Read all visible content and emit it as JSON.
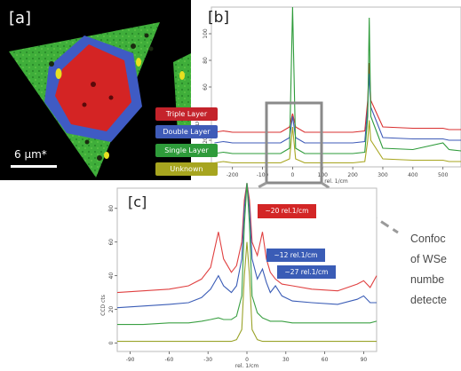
{
  "panel_a": {
    "label": "[a]",
    "scalebar_label": "6 µm*"
  },
  "panel_b": {
    "label": "[b]",
    "ylabel": "CCD cts",
    "xlabel": "rel. 1/cm",
    "x_ticks": [
      "-200",
      "-100",
      "0",
      "100",
      "200",
      "300",
      "400",
      "500"
    ],
    "y_ticks": [
      "100",
      "80",
      "60",
      "40",
      "20"
    ],
    "legend": [
      {
        "label": "Triple Layer",
        "color": "#c4232b"
      },
      {
        "label": "Double Layer",
        "color": "#3f5bb8"
      },
      {
        "label": "Single Layer",
        "color": "#2e9b3a"
      },
      {
        "label": "Unknown",
        "color": "#a7a51f"
      }
    ]
  },
  "panel_c": {
    "label": "[c]",
    "ylabel": "CCD cts",
    "xlabel": "rel. 1/cm",
    "x_ticks": [
      "-90",
      "-60",
      "-30",
      "0",
      "30",
      "60",
      "90"
    ],
    "y_ticks": [
      "80",
      "60",
      "40",
      "20",
      "0"
    ],
    "annotations": [
      {
        "text": "~20 rel.1/cm",
        "color": "#d32626"
      },
      {
        "text": "~12 rel.1/cm",
        "color": "#3a5cb6"
      },
      {
        "text": "~27 rel.1/cm",
        "color": "#3a5cb6"
      }
    ]
  },
  "caption_lines": [
    "Confoc",
    "of WSe",
    "numbe",
    "detecte"
  ],
  "chart_data": [
    {
      "type": "line",
      "title": "",
      "xlabel": "rel. 1/cm",
      "ylabel": "CCD cts",
      "xlim": [
        -270,
        560
      ],
      "ylim": [
        0,
        120
      ],
      "series": [
        {
          "name": "Triple Layer",
          "color": "#d93030",
          "x": [
            -260,
            -230,
            -200,
            -150,
            -100,
            -40,
            -10,
            0,
            10,
            40,
            100,
            200,
            240,
            250,
            255,
            260,
            300,
            400,
            500,
            520,
            560
          ],
          "y": [
            26,
            27,
            26,
            26,
            26,
            26,
            30,
            40,
            30,
            26,
            26,
            26,
            27,
            50,
            78,
            50,
            30,
            29,
            29,
            28,
            28
          ]
        },
        {
          "name": "Double Layer",
          "color": "#3f5bb8",
          "x": [
            -260,
            -230,
            -200,
            -150,
            -100,
            -40,
            -10,
            0,
            10,
            40,
            100,
            200,
            240,
            250,
            255,
            260,
            300,
            400,
            500,
            520,
            560
          ],
          "y": [
            18,
            19,
            18,
            18,
            18,
            18,
            22,
            38,
            22,
            18,
            18,
            18,
            19,
            45,
            70,
            45,
            22,
            21,
            21,
            20,
            20
          ]
        },
        {
          "name": "Single Layer",
          "color": "#2e9b3a",
          "x": [
            -260,
            -230,
            -200,
            -150,
            -100,
            -40,
            -10,
            0,
            10,
            40,
            100,
            200,
            240,
            250,
            255,
            260,
            300,
            400,
            500,
            520,
            560
          ],
          "y": [
            10,
            11,
            10,
            10,
            10,
            10,
            14,
            120,
            14,
            10,
            10,
            10,
            11,
            38,
            112,
            38,
            14,
            13,
            18,
            13,
            12
          ]
        },
        {
          "name": "Unknown",
          "color": "#a7a51f",
          "x": [
            -260,
            -230,
            -200,
            -150,
            -100,
            -40,
            -10,
            0,
            10,
            40,
            100,
            200,
            240,
            250,
            255,
            260,
            300,
            400,
            500,
            520,
            560
          ],
          "y": [
            3,
            4,
            3,
            3,
            3,
            3,
            6,
            30,
            6,
            3,
            3,
            3,
            4,
            20,
            35,
            20,
            6,
            5,
            5,
            4,
            4
          ]
        }
      ]
    },
    {
      "type": "line",
      "title": "",
      "xlabel": "rel. 1/cm",
      "ylabel": "CCD cts",
      "xlim": [
        -100,
        100
      ],
      "ylim": [
        -5,
        92
      ],
      "series": [
        {
          "name": "Triple Layer",
          "color": "#e04040",
          "x": [
            -100,
            -80,
            -60,
            -45,
            -35,
            -28,
            -22,
            -18,
            -12,
            -8,
            -4,
            -2,
            0,
            2,
            4,
            8,
            12,
            15,
            18,
            22,
            27,
            35,
            50,
            70,
            85,
            90,
            95,
            100
          ],
          "y": [
            30,
            31,
            32,
            34,
            38,
            45,
            66,
            50,
            42,
            46,
            60,
            85,
            95,
            85,
            60,
            52,
            66,
            50,
            42,
            38,
            35,
            34,
            32,
            31,
            35,
            37,
            33,
            40
          ]
        },
        {
          "name": "Double Layer",
          "color": "#3a5cb6",
          "x": [
            -100,
            -80,
            -60,
            -45,
            -35,
            -28,
            -22,
            -18,
            -12,
            -8,
            -4,
            -2,
            0,
            2,
            4,
            8,
            12,
            15,
            18,
            22,
            27,
            35,
            50,
            70,
            85,
            90,
            95,
            100
          ],
          "y": [
            21,
            22,
            23,
            24,
            27,
            32,
            40,
            34,
            30,
            34,
            50,
            80,
            95,
            80,
            50,
            38,
            44,
            36,
            30,
            34,
            28,
            25,
            24,
            23,
            26,
            28,
            24,
            24
          ]
        },
        {
          "name": "Single Layer",
          "color": "#3ba043",
          "x": [
            -100,
            -80,
            -60,
            -45,
            -35,
            -28,
            -22,
            -18,
            -12,
            -8,
            -4,
            -2,
            0,
            2,
            4,
            8,
            12,
            15,
            18,
            22,
            27,
            35,
            50,
            70,
            85,
            90,
            95,
            100
          ],
          "y": [
            11,
            11,
            12,
            12,
            13,
            14,
            15,
            14,
            14,
            16,
            28,
            70,
            95,
            70,
            28,
            18,
            15,
            14,
            13,
            13,
            13,
            12,
            12,
            12,
            12,
            12,
            12,
            13
          ]
        },
        {
          "name": "Unknown",
          "color": "#9aa32a",
          "x": [
            -100,
            -80,
            -60,
            -45,
            -35,
            -28,
            -22,
            -18,
            -12,
            -8,
            -4,
            -2,
            0,
            2,
            4,
            8,
            12,
            15,
            18,
            22,
            27,
            35,
            50,
            70,
            85,
            90,
            95,
            100
          ],
          "y": [
            1,
            1,
            1,
            1,
            1,
            1,
            1,
            1,
            1,
            2,
            8,
            40,
            60,
            40,
            8,
            2,
            1,
            1,
            1,
            1,
            1,
            1,
            1,
            1,
            1,
            1,
            1,
            1
          ]
        }
      ]
    }
  ]
}
